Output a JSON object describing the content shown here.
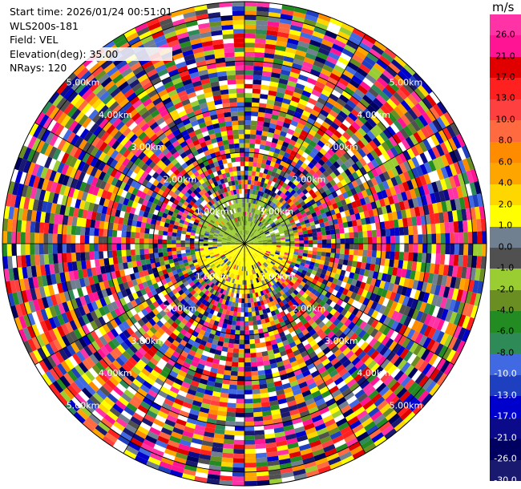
{
  "info": {
    "start_time": "Start time: 2026/01/24 00:51:01",
    "instrument": "WLS200s-181",
    "field": "Field: VEL",
    "elevation": "Elevation(deg): 35.00",
    "nrays": "NRays: 120"
  },
  "colorbar": {
    "unit": "m/s",
    "ticks": [
      "26.0",
      "21.0",
      "17.0",
      "13.0",
      "10.0",
      "8.0",
      "6.0",
      "4.0",
      "2.0",
      "1.0",
      "0.0",
      "-1.0",
      "-2.0",
      "-4.0",
      "-6.0",
      "-8.0",
      "-10.0",
      "-13.0",
      "-17.0",
      "-21.0",
      "-26.0",
      "-30.0"
    ],
    "colors": [
      "#ff33a6",
      "#ff1493",
      "#e00000",
      "#ff2020",
      "#ff4040",
      "#ff6a40",
      "#ff8c00",
      "#ffa500",
      "#ffd700",
      "#ffff00",
      "#708090",
      "#505050",
      "#9acd32",
      "#6b8e23",
      "#228b22",
      "#2e8b57",
      "#4169e1",
      "#1e40c0",
      "#0000cd",
      "#0a0a8b",
      "#000060",
      "#191970"
    ]
  },
  "chart_data": {
    "type": "heatmap",
    "projection": "polar PPI (range-azimuth)",
    "field": "VEL",
    "units": "m/s",
    "n_rays": 120,
    "elevation_deg": 35.0,
    "color_scale_min": -30.0,
    "color_scale_max": 26.0,
    "range_ring_labels": [
      "1.00km",
      "2.00km",
      "3.00km",
      "4.00km",
      "5.00km"
    ],
    "range_rings_km": [
      1.0,
      2.0,
      3.0,
      4.0,
      5.0
    ],
    "max_range_km": 5.3,
    "near_field_pattern": "mostly -1 to -2 m/s (yellow-green) in the north half within ~1 km, +1 to +2 m/s (yellow) in the south half within ~1 km; noisy values beyond"
  }
}
